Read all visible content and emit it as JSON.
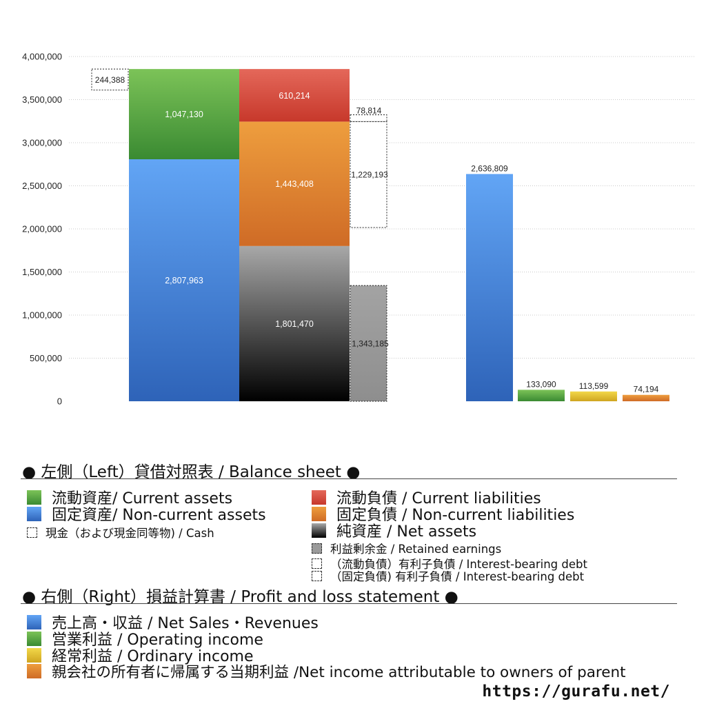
{
  "chart_data": {
    "type": "bar",
    "ylim": [
      0,
      4000000
    ],
    "yticks": [
      0,
      500000,
      1000000,
      1500000,
      2000000,
      2500000,
      3000000,
      3500000,
      4000000
    ],
    "ytick_labels": [
      "0",
      "500,000",
      "1,000,000",
      "1,500,000",
      "2,000,000",
      "2,500,000",
      "3,000,000",
      "3,500,000",
      "4,000,000"
    ],
    "grid": true,
    "balance_sheet": {
      "assets": [
        {
          "name": "固定資産/ Non-current assets",
          "value": 2807963,
          "label": "2,807,963",
          "color": "#4a89dc"
        },
        {
          "name": "流動資産/ Current assets",
          "value": 1047130,
          "label": "1,047,130",
          "color": "#56a646"
        }
      ],
      "cash": {
        "value": 244388,
        "label": "244,388"
      },
      "liabilities": [
        {
          "name": "純資産 / Net assets",
          "value": 1801470,
          "label": "1,801,470",
          "color": "#444444"
        },
        {
          "name": "固定負債 / Non-current liabilities",
          "value": 1443408,
          "label": "1,443,408",
          "color": "#e0822e"
        },
        {
          "name": "流動負債 / Current liabilities",
          "value": 610214,
          "label": "610,214",
          "color": "#d9473a"
        }
      ],
      "retained_earnings": {
        "value": 1343185,
        "label": "1,343,185"
      },
      "interest_bearing_debt_current": {
        "value": 78814,
        "label": "78,814"
      },
      "interest_bearing_debt_noncurrent": {
        "value": 1229193,
        "label": "1,229,193"
      }
    },
    "profit_loss": [
      {
        "name": "売上高・収益 / Net Sales・Revenues",
        "value": 2636809,
        "label": "2,636,809",
        "color": "#4a89dc"
      },
      {
        "name": "営業利益 / Operating income",
        "value": 133090,
        "label": "133,090",
        "color": "#56a646"
      },
      {
        "name": "経常利益 / Ordinary income",
        "value": 113599,
        "label": "113,599",
        "color": "#e3c22e"
      },
      {
        "name": "親会社の所有者に帰属する当期利益 /Net income attributable to owners of parent",
        "value": 74194,
        "label": "74,194",
        "color": "#e0822e"
      }
    ]
  },
  "legend": {
    "left_title": "● 左側（Left）貸借対照表 / Balance sheet ●",
    "current_assets": "流動資産/ Current assets",
    "non_current_assets": "固定資産/ Non-current assets",
    "cash": "現金（および現金同等物) / Cash",
    "current_liabilities": "流動負債 /  Current liabilities",
    "non_current_liabilities": "固定負債 / Non-current liabilities",
    "net_assets": "純資産 / Net assets",
    "retained_earnings": "利益剰余金 / Retained earnings",
    "ibd_current": "（流動負債）有利子負債 / Interest-bearing debt",
    "ibd_noncurrent": "（固定負債) 有利子負債 / Interest-bearing debt",
    "right_title": "● 右側（Right）損益計算書 / Profit and loss statement ●",
    "net_sales": "売上高・収益 / Net Sales・Revenues",
    "operating_income": "営業利益 / Operating income",
    "ordinary_income": "経常利益 / Ordinary income",
    "net_income": "親会社の所有者に帰属する当期利益 /Net income attributable to owners of parent"
  },
  "colors": {
    "blue": "#4a89dc",
    "green": "#56a646",
    "red": "#d9473a",
    "orange": "#e0822e",
    "yellow": "#e3c22e",
    "gray": "#9a9a9a",
    "black": "#222222"
  },
  "source_url": "https://gurafu.net/"
}
